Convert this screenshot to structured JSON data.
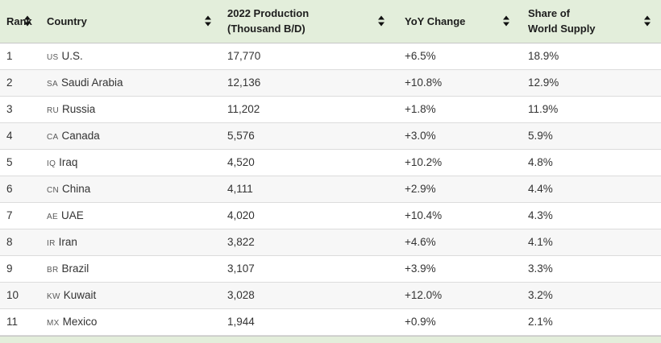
{
  "colors": {
    "header_bg": "#e3eedb",
    "stripe_bg": "#f7f7f7",
    "row_border": "#dcdcdc",
    "header_border": "#c6c6c6",
    "text": "#333333",
    "country_code": "#5a5a5a",
    "sort_icon": "#111111"
  },
  "table": {
    "headers": {
      "rank": "Rank",
      "country": "Country",
      "production_line1": "2022 Production",
      "production_line2": "(Thousand B/D)",
      "yoy": "YoY Change",
      "share_line1": "Share of",
      "share_line2": "World Supply"
    },
    "sort_icon_name": "sort-toggle-icon",
    "rows": [
      {
        "rank": "1",
        "code": "us",
        "country": "U.S.",
        "production": "17,770",
        "yoy": "+6.5%",
        "share": "18.9%"
      },
      {
        "rank": "2",
        "code": "sa",
        "country": "Saudi Arabia",
        "production": "12,136",
        "yoy": "+10.8%",
        "share": "12.9%"
      },
      {
        "rank": "3",
        "code": "ru",
        "country": "Russia",
        "production": "11,202",
        "yoy": "+1.8%",
        "share": "11.9%"
      },
      {
        "rank": "4",
        "code": "ca",
        "country": "Canada",
        "production": "5,576",
        "yoy": "+3.0%",
        "share": "5.9%"
      },
      {
        "rank": "5",
        "code": "iq",
        "country": "Iraq",
        "production": "4,520",
        "yoy": "+10.2%",
        "share": "4.8%"
      },
      {
        "rank": "6",
        "code": "cn",
        "country": "China",
        "production": "4,111",
        "yoy": "+2.9%",
        "share": "4.4%"
      },
      {
        "rank": "7",
        "code": "ae",
        "country": "UAE",
        "production": "4,020",
        "yoy": "+10.4%",
        "share": "4.3%"
      },
      {
        "rank": "8",
        "code": "ir",
        "country": "Iran",
        "production": "3,822",
        "yoy": "+4.6%",
        "share": "4.1%"
      },
      {
        "rank": "9",
        "code": "br",
        "country": "Brazil",
        "production": "3,107",
        "yoy": "+3.9%",
        "share": "3.3%"
      },
      {
        "rank": "10",
        "code": "kw",
        "country": "Kuwait",
        "production": "3,028",
        "yoy": "+12.0%",
        "share": "3.2%"
      },
      {
        "rank": "11",
        "code": "mx",
        "country": "Mexico",
        "production": "1,944",
        "yoy": "+0.9%",
        "share": "2.1%"
      }
    ]
  }
}
